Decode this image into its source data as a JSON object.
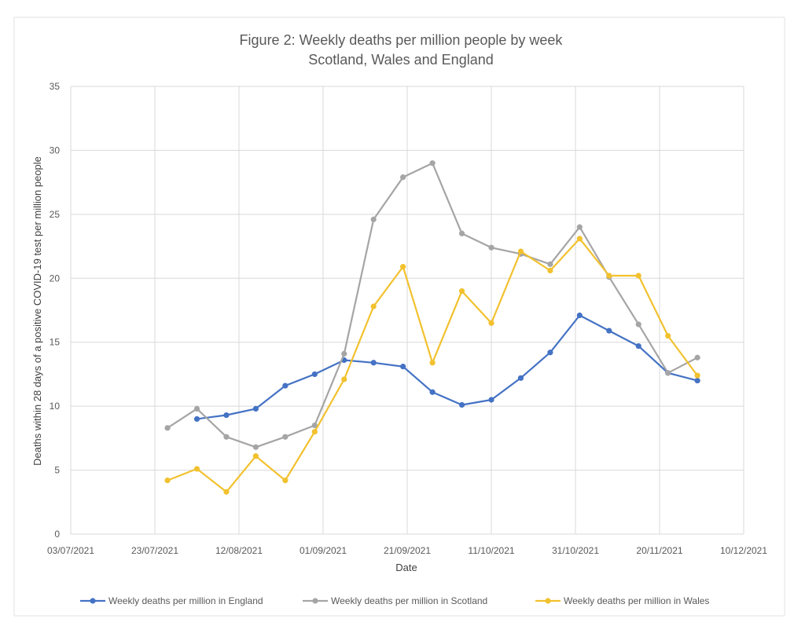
{
  "chart_data": {
    "type": "line",
    "title": [
      "Figure 2: Weekly deaths per million people by week",
      "Scotland, Wales and England"
    ],
    "xlabel": "Date",
    "ylabel": "Deaths within 28 days of a positive COVID-19 test per million people",
    "xlim": [
      "2021-07-03",
      "2021-12-10"
    ],
    "ylim": [
      0,
      35
    ],
    "yticks": [
      0,
      5,
      10,
      15,
      20,
      25,
      30,
      35
    ],
    "xticks": [
      "03/07/2021",
      "23/07/2021",
      "12/08/2021",
      "01/09/2021",
      "21/09/2021",
      "11/10/2021",
      "31/10/2021",
      "20/11/2021",
      "10/12/2021"
    ],
    "grid": true,
    "legend": "bottom",
    "series": [
      {
        "name": "Weekly deaths per million in England",
        "color": "#4472C4",
        "x": [
          "2021-08-02",
          "2021-08-09",
          "2021-08-16",
          "2021-08-23",
          "2021-08-30",
          "2021-09-06",
          "2021-09-13",
          "2021-09-20",
          "2021-09-27",
          "2021-10-04",
          "2021-10-11",
          "2021-10-18",
          "2021-10-25",
          "2021-11-01",
          "2021-11-08",
          "2021-11-15",
          "2021-11-22",
          "2021-11-29"
        ],
        "values": [
          9.0,
          9.3,
          9.8,
          11.6,
          12.5,
          13.6,
          13.4,
          13.1,
          11.1,
          10.1,
          10.5,
          12.2,
          14.2,
          17.1,
          15.9,
          14.7,
          12.6,
          12.0
        ]
      },
      {
        "name": "Weekly deaths per million in Scotland",
        "color": "#A5A5A5",
        "x": [
          "2021-07-26",
          "2021-08-02",
          "2021-08-09",
          "2021-08-16",
          "2021-08-23",
          "2021-08-30",
          "2021-09-06",
          "2021-09-13",
          "2021-09-20",
          "2021-09-27",
          "2021-10-04",
          "2021-10-11",
          "2021-10-18",
          "2021-10-25",
          "2021-11-01",
          "2021-11-08",
          "2021-11-15",
          "2021-11-22",
          "2021-11-29"
        ],
        "values": [
          8.3,
          9.8,
          7.6,
          6.8,
          7.6,
          8.5,
          14.1,
          24.6,
          27.9,
          29.0,
          23.5,
          22.4,
          21.9,
          21.1,
          24.0,
          20.1,
          16.4,
          12.6,
          13.8
        ]
      },
      {
        "name": "Weekly deaths per million in Wales",
        "color": "#F2C12E",
        "x": [
          "2021-07-26",
          "2021-08-02",
          "2021-08-09",
          "2021-08-16",
          "2021-08-23",
          "2021-08-30",
          "2021-09-06",
          "2021-09-13",
          "2021-09-20",
          "2021-09-27",
          "2021-10-04",
          "2021-10-11",
          "2021-10-18",
          "2021-10-25",
          "2021-11-01",
          "2021-11-08",
          "2021-11-15",
          "2021-11-22",
          "2021-11-29"
        ],
        "values": [
          4.2,
          5.1,
          3.3,
          6.1,
          4.2,
          8.0,
          12.1,
          17.8,
          20.9,
          13.4,
          19.0,
          16.5,
          22.1,
          20.6,
          23.1,
          20.2,
          20.2,
          15.5,
          12.4
        ]
      }
    ]
  }
}
